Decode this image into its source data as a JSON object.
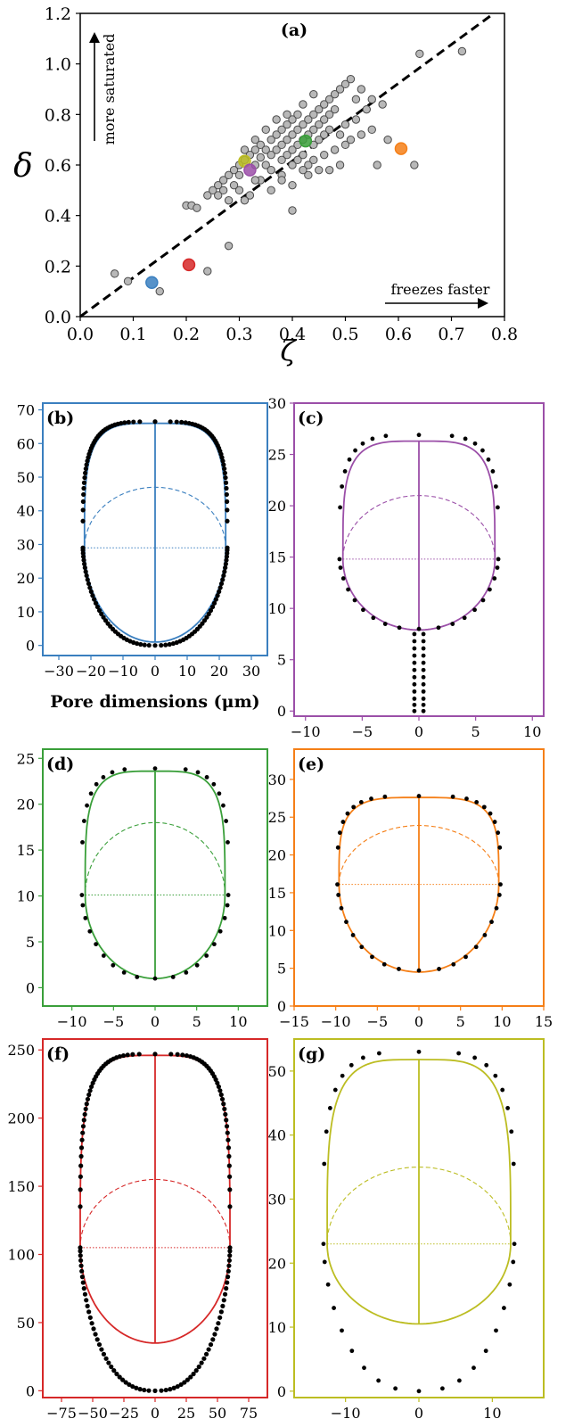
{
  "chart_data": [
    {
      "panel": "(a)",
      "type": "scatter",
      "xlabel": "ζ",
      "ylabel": "δ",
      "xlim": [
        0,
        0.8
      ],
      "ylim": [
        0,
        1.2
      ],
      "xticks": [
        "0.0",
        "0.1",
        "0.2",
        "0.3",
        "0.4",
        "0.5",
        "0.6",
        "0.7",
        "0.8"
      ],
      "yticks": [
        "0.0",
        "0.2",
        "0.4",
        "0.6",
        "0.8",
        "1.0",
        "1.2"
      ],
      "annotations": {
        "up_arrow": "more saturated",
        "right_arrow": "freezes faster"
      },
      "reference_line": {
        "style": "dashed",
        "from": [
          0,
          0
        ],
        "to": [
          0.78,
          1.2
        ]
      },
      "points_grey": [
        [
          0.065,
          0.17
        ],
        [
          0.09,
          0.14
        ],
        [
          0.15,
          0.1
        ],
        [
          0.2,
          0.44
        ],
        [
          0.21,
          0.44
        ],
        [
          0.22,
          0.43
        ],
        [
          0.24,
          0.18
        ],
        [
          0.24,
          0.48
        ],
        [
          0.25,
          0.5
        ],
        [
          0.26,
          0.52
        ],
        [
          0.28,
          0.28
        ],
        [
          0.27,
          0.54
        ],
        [
          0.28,
          0.56
        ],
        [
          0.29,
          0.58
        ],
        [
          0.3,
          0.6
        ],
        [
          0.3,
          0.56
        ],
        [
          0.31,
          0.62
        ],
        [
          0.32,
          0.64
        ],
        [
          0.33,
          0.6
        ],
        [
          0.33,
          0.66
        ],
        [
          0.34,
          0.63
        ],
        [
          0.34,
          0.68
        ],
        [
          0.35,
          0.66
        ],
        [
          0.35,
          0.6
        ],
        [
          0.36,
          0.7
        ],
        [
          0.36,
          0.64
        ],
        [
          0.37,
          0.72
        ],
        [
          0.37,
          0.66
        ],
        [
          0.38,
          0.74
        ],
        [
          0.38,
          0.68
        ],
        [
          0.38,
          0.62
        ],
        [
          0.39,
          0.76
        ],
        [
          0.39,
          0.7
        ],
        [
          0.39,
          0.64
        ],
        [
          0.4,
          0.78
        ],
        [
          0.4,
          0.72
        ],
        [
          0.4,
          0.66
        ],
        [
          0.4,
          0.6
        ],
        [
          0.41,
          0.8
        ],
        [
          0.41,
          0.74
        ],
        [
          0.41,
          0.68
        ],
        [
          0.42,
          0.76
        ],
        [
          0.42,
          0.7
        ],
        [
          0.42,
          0.64
        ],
        [
          0.43,
          0.78
        ],
        [
          0.43,
          0.72
        ],
        [
          0.43,
          0.6
        ],
        [
          0.44,
          0.8
        ],
        [
          0.44,
          0.74
        ],
        [
          0.44,
          0.68
        ],
        [
          0.45,
          0.82
        ],
        [
          0.45,
          0.76
        ],
        [
          0.45,
          0.7
        ],
        [
          0.46,
          0.84
        ],
        [
          0.46,
          0.78
        ],
        [
          0.46,
          0.72
        ],
        [
          0.47,
          0.86
        ],
        [
          0.47,
          0.8
        ],
        [
          0.48,
          0.88
        ],
        [
          0.48,
          0.82
        ],
        [
          0.48,
          0.66
        ],
        [
          0.49,
          0.9
        ],
        [
          0.5,
          0.92
        ],
        [
          0.5,
          0.76
        ],
        [
          0.51,
          0.94
        ],
        [
          0.52,
          0.78
        ],
        [
          0.53,
          0.72
        ],
        [
          0.55,
          0.74
        ],
        [
          0.57,
          0.84
        ],
        [
          0.58,
          0.7
        ],
        [
          0.56,
          0.6
        ],
        [
          0.36,
          0.5
        ],
        [
          0.34,
          0.54
        ],
        [
          0.3,
          0.5
        ],
        [
          0.32,
          0.48
        ],
        [
          0.28,
          0.46
        ],
        [
          0.4,
          0.42
        ],
        [
          0.44,
          0.62
        ],
        [
          0.46,
          0.64
        ],
        [
          0.5,
          0.68
        ],
        [
          0.52,
          0.86
        ],
        [
          0.54,
          0.82
        ],
        [
          0.49,
          0.6
        ],
        [
          0.47,
          0.58
        ],
        [
          0.36,
          0.58
        ],
        [
          0.38,
          0.56
        ],
        [
          0.33,
          0.54
        ],
        [
          0.31,
          0.46
        ],
        [
          0.26,
          0.48
        ],
        [
          0.42,
          0.84
        ],
        [
          0.44,
          0.88
        ],
        [
          0.39,
          0.8
        ],
        [
          0.37,
          0.78
        ],
        [
          0.35,
          0.74
        ],
        [
          0.33,
          0.7
        ],
        [
          0.31,
          0.66
        ],
        [
          0.63,
          0.6
        ],
        [
          0.64,
          1.04
        ],
        [
          0.72,
          1.05
        ],
        [
          0.55,
          0.86
        ],
        [
          0.51,
          0.7
        ],
        [
          0.53,
          0.9
        ],
        [
          0.29,
          0.52
        ],
        [
          0.27,
          0.5
        ],
        [
          0.45,
          0.58
        ],
        [
          0.43,
          0.56
        ],
        [
          0.41,
          0.62
        ],
        [
          0.47,
          0.74
        ],
        [
          0.49,
          0.72
        ],
        [
          0.4,
          0.52
        ],
        [
          0.38,
          0.54
        ],
        [
          0.42,
          0.58
        ]
      ],
      "points_highlighted": [
        {
          "x": 0.135,
          "y": 0.135,
          "color": "#3a7fbf"
        },
        {
          "x": 0.205,
          "y": 0.205,
          "color": "#d62828"
        },
        {
          "x": 0.31,
          "y": 0.615,
          "color": "#bcbd22"
        },
        {
          "x": 0.32,
          "y": 0.58,
          "color": "#9b4fa8"
        },
        {
          "x": 0.425,
          "y": 0.695,
          "color": "#3a9f3a"
        },
        {
          "x": 0.605,
          "y": 0.665,
          "color": "#f57f17"
        }
      ],
      "colors": {
        "grey_fill": "#b8b8b8",
        "grey_edge": "#4a4a4a"
      }
    },
    {
      "panel": "(b)",
      "type": "scatter",
      "color": "#3a7fbf",
      "xlim": [
        -35,
        35
      ],
      "ylim": [
        -3,
        72
      ],
      "xticks": [
        -30,
        -20,
        -10,
        0,
        10,
        20,
        30
      ],
      "xtick_labels": [
        "−30",
        "−20",
        "−10",
        "0",
        "10",
        "20",
        "30"
      ],
      "yticks": [
        0,
        10,
        20,
        30,
        40,
        50,
        60,
        70
      ],
      "xlabel": "Pore dimensions (μm)",
      "half_width": 22,
      "height": 66,
      "bottom_y": 1,
      "waist_y": 29,
      "arc_top_y": 47,
      "dots_half_width": 22.5,
      "dots_top": 66.5,
      "dots_bottom": 0
    },
    {
      "panel": "(c)",
      "type": "scatter",
      "color": "#9b4fa8",
      "xlim": [
        -11,
        11
      ],
      "ylim": [
        -0.5,
        30
      ],
      "xticks": [
        -10,
        -5,
        0,
        5,
        10
      ],
      "xtick_labels": [
        "−10",
        "−5",
        "0",
        "5",
        "10"
      ],
      "yticks": [
        0,
        5,
        10,
        15,
        20,
        25,
        30
      ],
      "half_width": 6.7,
      "height": 26.3,
      "bottom_y": 7.9,
      "waist_y": 14.8,
      "arc_top_y": 21,
      "dots_half_width": 7,
      "dots_top": 26.9,
      "dots_bottom": 8,
      "stem_dots": [
        0,
        0.6,
        1.2,
        1.9,
        2.6,
        3.3,
        4,
        4.7,
        5.4,
        6.1,
        6.8,
        7.5
      ]
    },
    {
      "panel": "(d)",
      "type": "scatter",
      "color": "#3a9f3a",
      "xlim": [
        -13.5,
        13.5
      ],
      "ylim": [
        -2,
        26
      ],
      "xticks": [
        -10,
        -5,
        0,
        5,
        10
      ],
      "xtick_labels": [
        "−10",
        "−5",
        "0",
        "5",
        "10"
      ],
      "yticks": [
        0,
        5,
        10,
        15,
        20,
        25
      ],
      "half_width": 8.4,
      "height": 23.6,
      "bottom_y": 1,
      "waist_y": 10.1,
      "arc_top_y": 18,
      "dots_half_width": 8.8,
      "dots_top": 23.9,
      "dots_bottom": 1
    },
    {
      "panel": "(e)",
      "type": "scatter",
      "color": "#f57f17",
      "xlim": [
        -15,
        15
      ],
      "ylim": [
        0,
        34
      ],
      "xticks": [
        -15,
        -10,
        -5,
        0,
        5,
        10,
        15
      ],
      "xtick_labels": [
        "−15",
        "−10",
        "−5",
        "0",
        "5",
        "10",
        "15"
      ],
      "yticks": [
        0,
        5,
        10,
        15,
        20,
        25,
        30
      ],
      "half_width": 9.6,
      "height": 27.6,
      "bottom_y": 4.5,
      "waist_y": 16.1,
      "arc_top_y": 23.9,
      "dots_half_width": 9.8,
      "dots_top": 27.8,
      "dots_bottom": 4.7
    },
    {
      "panel": "(f)",
      "type": "scatter",
      "color": "#d62828",
      "xlim": [
        -90,
        90
      ],
      "ylim": [
        -5,
        258
      ],
      "xticks": [
        -75,
        -50,
        -25,
        0,
        25,
        50,
        75
      ],
      "xtick_labels": [
        "−75",
        "−50",
        "−25",
        "0",
        "25",
        "50",
        "75"
      ],
      "yticks": [
        0,
        50,
        100,
        150,
        200,
        250
      ],
      "half_width": 60,
      "height": 246,
      "bottom_y": 35,
      "waist_y": 105,
      "arc_top_y": 155,
      "dots_half_width": 60,
      "dots_top": 247,
      "dots_bottom": 0
    },
    {
      "panel": "(g)",
      "type": "scatter",
      "color": "#bcbd22",
      "xlim": [
        -17,
        17
      ],
      "ylim": [
        -1,
        55
      ],
      "xticks": [
        -10,
        0,
        10
      ],
      "xtick_labels": [
        "−10",
        "0",
        "10"
      ],
      "yticks": [
        0,
        10,
        20,
        30,
        40,
        50
      ],
      "half_width": 12.5,
      "height": 51.8,
      "bottom_y": 10.5,
      "waist_y": 23,
      "arc_top_y": 35,
      "dots_half_width": 13,
      "dots_top": 53,
      "dots_bottom": 0
    }
  ]
}
